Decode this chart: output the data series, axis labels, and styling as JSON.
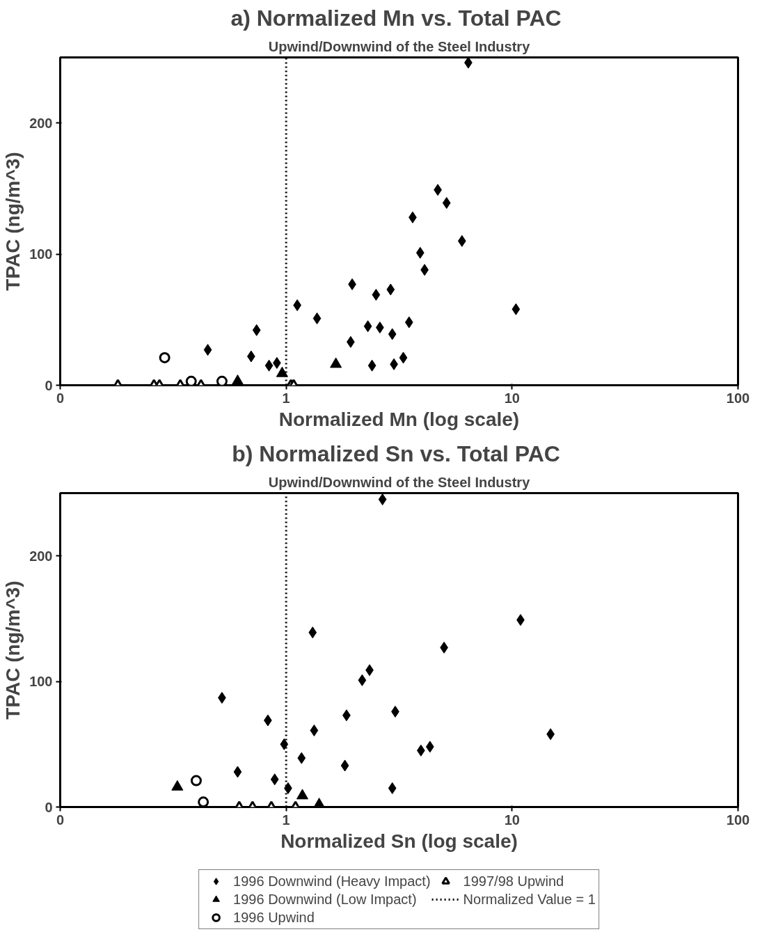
{
  "chart_data": [
    {
      "type": "scatter",
      "title": "a)  Normalized Mn vs. Total PAC",
      "subtitle": "Upwind/Downwind of the Steel Industry",
      "xlabel": "Normalized Mn (log scale)",
      "ylabel": "TPAC (ng/m^3)",
      "log": "x",
      "xlim": [
        0.1,
        100
      ],
      "ylim": [
        0,
        250
      ],
      "xticks": [
        {
          "value": 0.1,
          "label": "0"
        },
        1,
        10,
        100
      ],
      "yticks": [
        0,
        100,
        200
      ],
      "grid": false,
      "legend": false,
      "series": [
        {
          "color": "#000000",
          "marker": "diamond",
          "x": [
            6.4,
            4.69,
            5.13,
            3.63,
            3.92,
            4.1,
            6.0,
            10.4,
            1.96,
            2.9,
            2.5,
            1.12,
            1.37,
            3.5,
            2.3,
            2.6,
            2.95,
            1.93,
            0.74,
            0.45,
            0.7,
            0.84,
            0.91,
            2.4,
            3.0,
            3.3
          ],
          "values": [
            246,
            149,
            139,
            128,
            101,
            88,
            110,
            58,
            77,
            73,
            69,
            61,
            51,
            48,
            45,
            44,
            39,
            33,
            42,
            27,
            22,
            15,
            17,
            15,
            16,
            21
          ]
        },
        {
          "color": "#000000",
          "marker": "triangle",
          "x": [
            1.66,
            0.96,
            0.61
          ],
          "values": [
            16,
            9,
            3
          ]
        },
        {
          "color": "#ffffff",
          "marker": "circle",
          "x": [
            0.29,
            0.38,
            0.52
          ],
          "values": [
            21,
            3,
            3
          ]
        },
        {
          "color": "#ffffff",
          "marker": "triangle",
          "x": [
            0.18,
            0.26,
            0.275,
            0.34,
            0.42,
            1.05,
            1.08
          ],
          "values": [
            0,
            0,
            0,
            0,
            0,
            0,
            0
          ]
        }
      ],
      "ref_lines": [
        {
          "axis": "x",
          "value": 1,
          "line_style": "dotted",
          "color": "#000000"
        }
      ]
    },
    {
      "type": "scatter",
      "title": "b)  Normalized Sn vs. Total PAC",
      "subtitle": "Upwind/Downwind of the Steel Industry",
      "xlabel": "Normalized Sn (log scale)",
      "ylabel": "TPAC (ng/m^3)",
      "log": "x",
      "xlim": [
        0.1,
        100
      ],
      "ylim": [
        0,
        250
      ],
      "xticks": [
        {
          "value": 0.1,
          "label": "0"
        },
        1,
        10,
        100
      ],
      "yticks": [
        0,
        100,
        200
      ],
      "grid": false,
      "legend": "bottom",
      "series": [
        {
          "name": "1996 Downwind (Heavy Impact)",
          "color": "#000000",
          "marker": "diamond",
          "x": [
            2.67,
            1.31,
            2.17,
            2.34,
            0.52,
            0.83,
            1.85,
            1.33,
            0.98,
            1.17,
            1.82,
            0.61,
            0.89,
            1.02,
            3.04,
            2.95,
            10.9,
            5.0,
            3.95,
            4.33,
            14.8
          ],
          "values": [
            245,
            139,
            101,
            109,
            87,
            69,
            73,
            61,
            50,
            39,
            33,
            28,
            22,
            15,
            76,
            15,
            149,
            127,
            45,
            48,
            58
          ]
        },
        {
          "name": "1996 Downwind (Low Impact)",
          "color": "#000000",
          "marker": "triangle",
          "x": [
            0.33,
            1.18,
            1.4
          ],
          "values": [
            16,
            9,
            2
          ]
        },
        {
          "name": "1996 Upwind",
          "color": "#ffffff",
          "marker": "circle",
          "x": [
            0.4,
            0.43
          ],
          "values": [
            21,
            4
          ]
        },
        {
          "name": "1997/98 Upwind",
          "color": "#ffffff",
          "marker": "triangle",
          "x": [
            0.62,
            0.71,
            0.86,
            1.1
          ],
          "values": [
            0,
            0,
            0,
            0
          ]
        }
      ],
      "ref_lines": [
        {
          "axis": "x",
          "value": 1,
          "label": "Normalized Value = 1",
          "line_style": "dotted",
          "color": "#000000"
        }
      ]
    }
  ]
}
